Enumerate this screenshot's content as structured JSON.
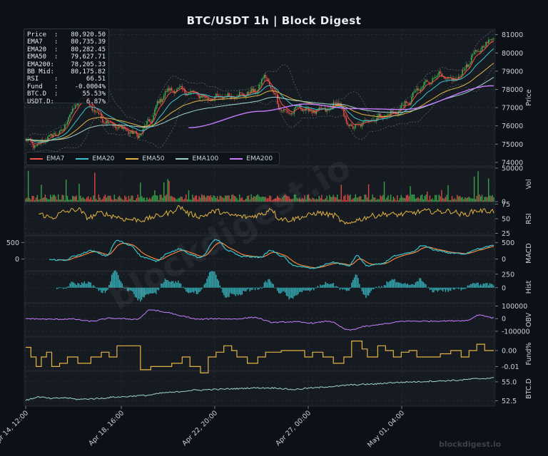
{
  "chart_data": {
    "type": "line",
    "title": "BTC/USDT  1h  |  Block Digest",
    "watermark": "blockdigest.io",
    "diagonal_watermark": "blockdigest.io",
    "stats": [
      {
        "label": "Price  :",
        "value": "80,920.50"
      },
      {
        "label": "EMA7   :",
        "value": "80,735.39"
      },
      {
        "label": "EMA20  :",
        "value": "80,282.45"
      },
      {
        "label": "EMA50  :",
        "value": "79,627.71"
      },
      {
        "label": "EMA200:",
        "value": "78,205.33"
      },
      {
        "label": "BB Mid:",
        "value": "80,175.82"
      },
      {
        "label": "RSI    :",
        "value": "66.51"
      },
      {
        "label": "Fund   :",
        "value": "-0.0004%"
      },
      {
        "label": "BTC.D  :",
        "value": "55.53%"
      },
      {
        "label": "USDT.D:",
        "value": "6.87%"
      }
    ],
    "legend": [
      {
        "name": "EMA7",
        "color": "#f85149"
      },
      {
        "name": "EMA20",
        "color": "#39c5cf"
      },
      {
        "name": "EMA50",
        "color": "#e3b341"
      },
      {
        "name": "EMA100",
        "color": "#9fd3c7"
      },
      {
        "name": "EMA200",
        "color": "#c77dff"
      }
    ],
    "colors": {
      "up": "#3fb950",
      "down": "#f85149",
      "bb": "#6e7681",
      "rsi": "#e3b341",
      "macd": "#39c5cf",
      "signal": "#f0883e",
      "hist": "#39c5cf",
      "obv": "#c77dff",
      "fund": "#e3b341",
      "btcd": "#9fd3c7"
    },
    "x_ticks": [
      "Apr 14, 12:00",
      "Apr 18, 16:00",
      "Apr 22, 20:00",
      "Apr 27, 00:00",
      "May 01, 04:00"
    ],
    "panels": [
      {
        "ylabel": "Price",
        "ticks": [
          "81000",
          "80000",
          "79000",
          "78000",
          "77000",
          "76000",
          "75000",
          "74000"
        ],
        "ylim": [
          73800,
          81300
        ]
      },
      {
        "ylabel": "Vol",
        "ticks": [
          "50000",
          "0"
        ],
        "ylim": [
          0,
          52000
        ]
      },
      {
        "ylabel": "RSI",
        "ticks": [
          "75",
          "50",
          "25"
        ],
        "ylim": [
          22,
          78
        ]
      },
      {
        "ylabel": "MACD",
        "ticks": [
          "500",
          "0"
        ],
        "ylim": [
          -350,
          700
        ]
      },
      {
        "ylabel": "Hist",
        "ticks": [
          "250",
          "0"
        ],
        "ylim": [
          -280,
          300
        ]
      },
      {
        "ylabel": "OBV",
        "ticks": [
          "100000",
          "0",
          "-100000"
        ],
        "ylim": [
          -140000,
          120000
        ]
      },
      {
        "ylabel": "Fund%",
        "ticks": [
          "0.00",
          "-0.01"
        ],
        "ylim": [
          -0.0125,
          0.0085
        ]
      },
      {
        "ylabel": "BTC.D",
        "ticks": [
          "55.0",
          "52.5"
        ],
        "ylim": [
          51.8,
          56.4
        ]
      }
    ],
    "left_ticks": {
      "MACD": [
        "500",
        "0"
      ]
    },
    "price_anchors": [
      [
        0,
        75200
      ],
      [
        8,
        74900
      ],
      [
        18,
        75400
      ],
      [
        28,
        75700
      ],
      [
        35,
        76800
      ],
      [
        45,
        77700
      ],
      [
        52,
        76900
      ],
      [
        60,
        76300
      ],
      [
        72,
        75900
      ],
      [
        86,
        75500
      ],
      [
        96,
        76300
      ],
      [
        102,
        77300
      ],
      [
        108,
        77900
      ],
      [
        116,
        78000
      ],
      [
        128,
        77800
      ],
      [
        140,
        77500
      ],
      [
        152,
        77600
      ],
      [
        165,
        77700
      ],
      [
        176,
        77900
      ],
      [
        184,
        78700
      ],
      [
        190,
        77800
      ],
      [
        196,
        76900
      ],
      [
        202,
        76700
      ],
      [
        210,
        77000
      ],
      [
        220,
        76800
      ],
      [
        232,
        76900
      ],
      [
        240,
        77300
      ],
      [
        246,
        76200
      ],
      [
        252,
        75900
      ],
      [
        262,
        76300
      ],
      [
        272,
        76500
      ],
      [
        282,
        76700
      ],
      [
        292,
        77200
      ],
      [
        300,
        77900
      ],
      [
        308,
        78400
      ],
      [
        316,
        78800
      ],
      [
        324,
        78500
      ],
      [
        332,
        78600
      ],
      [
        338,
        79300
      ],
      [
        345,
        80000
      ],
      [
        352,
        80400
      ],
      [
        358,
        80900
      ]
    ],
    "ema200_anchors": [
      [
        125,
        75900
      ],
      [
        180,
        76800
      ],
      [
        215,
        77200
      ],
      [
        250,
        76950
      ],
      [
        290,
        76900
      ],
      [
        358,
        78200
      ]
    ],
    "rsi_anchors": [
      [
        0,
        51
      ],
      [
        10,
        58
      ],
      [
        20,
        52
      ],
      [
        30,
        62
      ],
      [
        40,
        66
      ],
      [
        48,
        52
      ],
      [
        58,
        60
      ],
      [
        66,
        55
      ],
      [
        78,
        49
      ],
      [
        90,
        48
      ],
      [
        100,
        54
      ],
      [
        110,
        60
      ],
      [
        118,
        70
      ],
      [
        126,
        58
      ],
      [
        134,
        54
      ],
      [
        146,
        63
      ],
      [
        158,
        56
      ],
      [
        170,
        53
      ],
      [
        182,
        58
      ],
      [
        188,
        68
      ],
      [
        194,
        51
      ],
      [
        202,
        48
      ],
      [
        212,
        53
      ],
      [
        224,
        60
      ],
      [
        236,
        56
      ],
      [
        246,
        40
      ],
      [
        254,
        48
      ],
      [
        266,
        55
      ],
      [
        276,
        58
      ],
      [
        286,
        57
      ],
      [
        296,
        60
      ],
      [
        306,
        63
      ],
      [
        316,
        62
      ],
      [
        326,
        63
      ],
      [
        336,
        57
      ],
      [
        346,
        64
      ],
      [
        358,
        63
      ]
    ],
    "macd_anchors": [
      [
        10,
        -30
      ],
      [
        20,
        -20
      ],
      [
        30,
        -40
      ],
      [
        38,
        100
      ],
      [
        50,
        250
      ],
      [
        62,
        100
      ],
      [
        70,
        560
      ],
      [
        80,
        420
      ],
      [
        90,
        60
      ],
      [
        100,
        -60
      ],
      [
        110,
        200
      ],
      [
        118,
        300
      ],
      [
        126,
        150
      ],
      [
        134,
        40
      ],
      [
        146,
        580
      ],
      [
        156,
        250
      ],
      [
        166,
        80
      ],
      [
        180,
        60
      ],
      [
        188,
        260
      ],
      [
        196,
        100
      ],
      [
        206,
        -200
      ],
      [
        220,
        -280
      ],
      [
        236,
        -100
      ],
      [
        248,
        -200
      ],
      [
        254,
        100
      ],
      [
        262,
        -200
      ],
      [
        272,
        -150
      ],
      [
        284,
        100
      ],
      [
        296,
        200
      ],
      [
        304,
        400
      ],
      [
        316,
        260
      ],
      [
        326,
        180
      ],
      [
        336,
        160
      ],
      [
        346,
        300
      ],
      [
        358,
        400
      ]
    ],
    "obv_anchors": [
      [
        0,
        0
      ],
      [
        20,
        -5000
      ],
      [
        35,
        -3000
      ],
      [
        50,
        -20000
      ],
      [
        65,
        3000
      ],
      [
        75,
        -1000
      ],
      [
        85,
        -5000
      ],
      [
        96,
        70000
      ],
      [
        108,
        50000
      ],
      [
        120,
        20000
      ],
      [
        132,
        -5000
      ],
      [
        146,
        0
      ],
      [
        160,
        -3000
      ],
      [
        175,
        10000
      ],
      [
        190,
        -30000
      ],
      [
        205,
        -25000
      ],
      [
        220,
        -35000
      ],
      [
        232,
        -20000
      ],
      [
        248,
        -90000
      ],
      [
        262,
        -60000
      ],
      [
        276,
        -40000
      ],
      [
        290,
        -20000
      ],
      [
        306,
        -20000
      ],
      [
        322,
        -18000
      ],
      [
        338,
        -15000
      ],
      [
        348,
        30000
      ],
      [
        358,
        8000
      ]
    ],
    "fund_steps": [
      [
        0,
        0.002
      ],
      [
        4,
        -0.004
      ],
      [
        8,
        -0.01
      ],
      [
        12,
        -0.004
      ],
      [
        16,
        -0.001
      ],
      [
        20,
        -0.01
      ],
      [
        26,
        -0.008
      ],
      [
        32,
        -0.004
      ],
      [
        40,
        -0.008
      ],
      [
        50,
        -0.004
      ],
      [
        58,
        -0.001
      ],
      [
        64,
        -0.004
      ],
      [
        70,
        0.003
      ],
      [
        80,
        0.003
      ],
      [
        88,
        -0.012
      ],
      [
        96,
        -0.01
      ],
      [
        104,
        -0.01
      ],
      [
        112,
        -0.008
      ],
      [
        120,
        -0.004
      ],
      [
        126,
        -0.01
      ],
      [
        134,
        -0.014
      ],
      [
        140,
        -0.004
      ],
      [
        146,
        -0.001
      ],
      [
        152,
        0.003
      ],
      [
        158,
        0.0
      ],
      [
        162,
        -0.004
      ],
      [
        170,
        -0.008
      ],
      [
        178,
        -0.004
      ],
      [
        184,
        -0.001
      ],
      [
        196,
        0.0
      ],
      [
        206,
        0.0
      ],
      [
        214,
        -0.004
      ],
      [
        220,
        -0.001
      ],
      [
        228,
        -0.004
      ],
      [
        236,
        -0.008
      ],
      [
        244,
        -0.004
      ],
      [
        250,
        0.006
      ],
      [
        258,
        0.001
      ],
      [
        262,
        -0.004
      ],
      [
        270,
        0.003
      ],
      [
        276,
        0.0
      ],
      [
        282,
        -0.004
      ],
      [
        288,
        -0.001
      ],
      [
        294,
        0.0
      ],
      [
        300,
        -0.004
      ],
      [
        310,
        -0.004
      ],
      [
        318,
        -0.002
      ],
      [
        326,
        0.0
      ],
      [
        334,
        -0.004
      ],
      [
        340,
        0.0
      ],
      [
        346,
        0.004
      ],
      [
        352,
        0.0
      ],
      [
        358,
        0.0
      ]
    ],
    "btcd_anchors": [
      [
        0,
        52.6
      ],
      [
        10,
        53.0
      ],
      [
        20,
        52.8
      ],
      [
        30,
        52.9
      ],
      [
        40,
        52.7
      ],
      [
        55,
        52.8
      ],
      [
        70,
        53.0
      ],
      [
        90,
        53.2
      ],
      [
        110,
        53.6
      ],
      [
        130,
        53.9
      ],
      [
        145,
        54.0
      ],
      [
        160,
        54.1
      ],
      [
        175,
        54.2
      ],
      [
        190,
        54.2
      ],
      [
        205,
        54.0
      ],
      [
        220,
        54.2
      ],
      [
        236,
        54.4
      ],
      [
        250,
        54.6
      ],
      [
        266,
        54.7
      ],
      [
        282,
        54.9
      ],
      [
        298,
        55.0
      ],
      [
        314,
        55.1
      ],
      [
        330,
        55.2
      ],
      [
        346,
        55.4
      ],
      [
        358,
        55.5
      ]
    ],
    "n_points": 360
  }
}
